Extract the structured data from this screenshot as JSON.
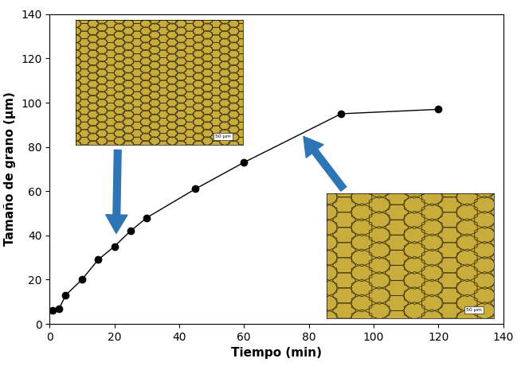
{
  "chart_data": {
    "type": "line",
    "x_label": "Tiempo (min)",
    "y_label": "Tamaño de grano (μm)",
    "x": [
      1,
      3,
      5,
      10,
      15,
      20,
      25,
      30,
      45,
      60,
      90,
      120
    ],
    "series": [
      {
        "name": null,
        "color": "#000000",
        "marker": "o",
        "line_style": "solid",
        "values": [
          6,
          7,
          13,
          20,
          29,
          35,
          42,
          48,
          61,
          73,
          95,
          97
        ]
      }
    ],
    "xlim": [
      0,
      140
    ],
    "xticks": [
      0,
      20,
      40,
      60,
      80,
      100,
      120,
      140
    ],
    "ylim": [
      0,
      140
    ],
    "yticks": [
      0,
      20,
      40,
      60,
      80,
      100,
      120,
      140
    ],
    "grid": false,
    "annotations": [
      "50 μm",
      "50 μm"
    ]
  }
}
